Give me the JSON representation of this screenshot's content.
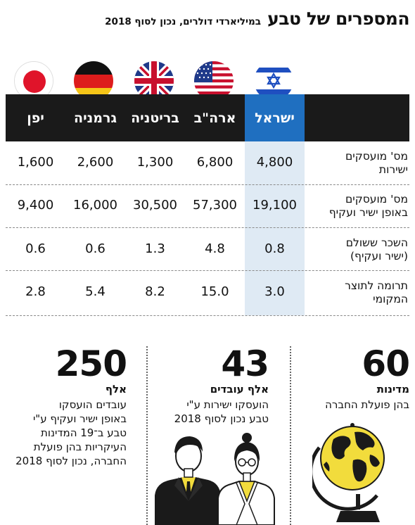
{
  "title": {
    "main": "המספרים של טבע",
    "sub": "במיליארדי דולרים, נכון לסוף 2018"
  },
  "columns": [
    {
      "key": "israel",
      "label": "ישראל",
      "flag": "israel-flag-icon"
    },
    {
      "key": "usa",
      "label": "ארה\"ב",
      "flag": "usa-flag-icon"
    },
    {
      "key": "uk",
      "label": "בריטניה",
      "flag": "uk-flag-icon"
    },
    {
      "key": "germany",
      "label": "גרמניה",
      "flag": "germany-flag-icon"
    },
    {
      "key": "japan",
      "label": "יפן",
      "flag": "japan-flag-icon"
    }
  ],
  "rows": [
    {
      "label_line1": "מס' מועסקים",
      "label_line2": "ישירות",
      "values": [
        "4,800",
        "6,800",
        "1,300",
        "2,600",
        "1,600"
      ]
    },
    {
      "label_line1": "מס' מועסקים",
      "label_line2": "באופן ישיר ועקיף",
      "values": [
        "19,100",
        "57,300",
        "30,500",
        "16,000",
        "9,400"
      ]
    },
    {
      "label_line1": "השכר ששולם",
      "label_line2": "(ישיר ועקיף)",
      "values": [
        "0.8",
        "4.8",
        "1.3",
        "0.6",
        "0.6"
      ]
    },
    {
      "label_line1": "תרומה לתוצר",
      "label_line2": "המקומי",
      "values": [
        "3.0",
        "15.0",
        "8.2",
        "5.4",
        "2.8"
      ]
    }
  ],
  "stats": [
    {
      "number": "60",
      "unit": "מדינות",
      "desc": [
        "בהן פועלת החברה"
      ]
    },
    {
      "number": "43",
      "unit": "אלף עובדים",
      "desc": [
        "הועסקו ישירות ע\"י",
        "טבע נכון לסוף 2018"
      ]
    },
    {
      "number": "250",
      "unit": "אלף",
      "desc": [
        "עובדים הועסקו",
        "באופן ישיר ועקיף ע\"י",
        "טבע ב־19 המדינות",
        "העיקריות בהן פועלת",
        "החברה, נכון לסוף 2018"
      ]
    }
  ],
  "colors": {
    "header_black": "#1a1a1a",
    "israel_blue": "#1f6fc0",
    "israel_column_tint": "#dfeaf4",
    "illustration_yellow": "#f2dc3c"
  }
}
